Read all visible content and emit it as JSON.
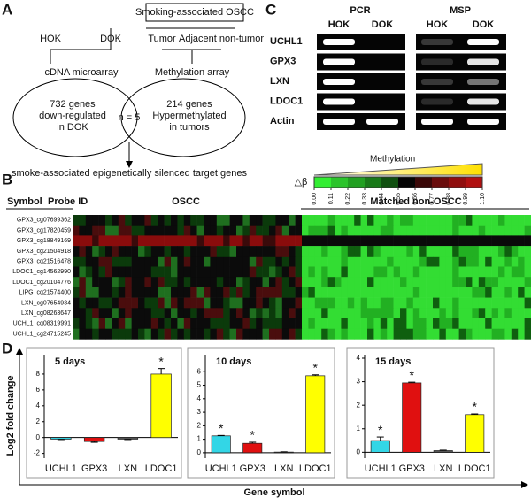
{
  "panel_labels": [
    "A",
    "B",
    "C",
    "D"
  ],
  "panel_a": {
    "box": "Smoking-associated OSCC",
    "left_samples": [
      "HOK",
      "DOK"
    ],
    "right_samples": [
      "Tumor",
      "Adjacent non-tumor"
    ],
    "methods": [
      "cDNA microarray",
      "Methylation array"
    ],
    "left_circle": [
      "732 genes",
      "down-regulated",
      "in DOK"
    ],
    "right_circle": [
      "214 genes",
      "Hypermethylated",
      "in tumors"
    ],
    "overlap": "n = 5",
    "conclusion": "smoke-associated epigenetically silenced target genes"
  },
  "panel_b": {
    "headers": [
      "Symbol",
      "Probe ID"
    ],
    "groups": [
      "OSCC",
      "Matched non-OSCC"
    ],
    "probes": [
      "GPX3_cg07699362",
      "GPX3_cg17820459",
      "GPX3_cg18849169",
      "GPX3_cg21504918",
      "GPX3_cg21516478",
      "LDOC1_cg14562990",
      "LDOC1_cg20104776",
      "LIPG_cg21574400",
      "LXN_cg07654934",
      "LXN_cg08263647",
      "UCHL1_cg08319991",
      "UCHL1_cg24715245"
    ]
  },
  "panel_c": {
    "methods": [
      "PCR",
      "MSP"
    ],
    "lanes": [
      "HOK",
      "DOK",
      "HOK",
      "DOK"
    ],
    "genes": [
      "UCHL1",
      "GPX3",
      "LXN",
      "LDOC1",
      "Actin"
    ],
    "scale_title": "Methylation",
    "scale_symbol": "△β",
    "scale_ticks": [
      {
        "value": 0,
        "label": "0.00"
      },
      {
        "value": 0.11,
        "label": "0.11"
      },
      {
        "value": 0.22,
        "label": "0.22"
      },
      {
        "value": 0.33,
        "label": "0.33"
      },
      {
        "value": 0.44,
        "label": "0.44"
      },
      {
        "value": 0.55,
        "label": "0.55"
      },
      {
        "value": 0.66,
        "label": "0.66"
      },
      {
        "value": 0.77,
        "label": "0.77"
      },
      {
        "value": 0.88,
        "label": "0.88"
      },
      {
        "value": 0.99,
        "label": "0.99"
      },
      {
        "value": 1.1,
        "label": "1.10"
      }
    ]
  },
  "panel_d": {
    "ylabel": "Log2 fold change",
    "xlabel": "Gene symbol",
    "marker": "*"
  },
  "chart_data": [
    {
      "type": "bar",
      "title": "5 days",
      "categories": [
        "UCHL1",
        "GPX3",
        "LXN",
        "LDOC1"
      ],
      "values": [
        -0.2,
        -0.5,
        -0.2,
        8.0
      ],
      "errors": [
        0.05,
        0.1,
        0.05,
        0.7
      ],
      "significant": [
        false,
        false,
        false,
        true
      ],
      "colors": [
        "#33d6e6",
        "#e01010",
        "#555555",
        "#ffff00"
      ],
      "ylim": [
        -2.6,
        10
      ],
      "yticks": [
        -2,
        0,
        2,
        4,
        6,
        8
      ]
    },
    {
      "type": "bar",
      "title": "10 days",
      "categories": [
        "UCHL1",
        "GPX3",
        "LXN",
        "LDOC1"
      ],
      "values": [
        1.25,
        0.7,
        0.05,
        5.7
      ],
      "errors": [
        0.03,
        0.08,
        0.02,
        0.07
      ],
      "significant": [
        true,
        true,
        false,
        true
      ],
      "colors": [
        "#33d6e6",
        "#e01010",
        "#555555",
        "#ffff00"
      ],
      "ylim": [
        -0.4,
        7
      ],
      "yticks": [
        0,
        1,
        2,
        3,
        4,
        5,
        6
      ]
    },
    {
      "type": "bar",
      "title": "15 days",
      "categories": [
        "UCHL1",
        "GPX3",
        "LXN",
        "LDOC1"
      ],
      "values": [
        0.5,
        2.95,
        0.07,
        1.6
      ],
      "errors": [
        0.15,
        0.03,
        0.02,
        0.03
      ],
      "significant": [
        true,
        true,
        false,
        true
      ],
      "colors": [
        "#33d6e6",
        "#e01010",
        "#555555",
        "#ffff00"
      ],
      "ylim": [
        -0.25,
        4
      ],
      "yticks": [
        0,
        1,
        2,
        3,
        4
      ]
    }
  ]
}
